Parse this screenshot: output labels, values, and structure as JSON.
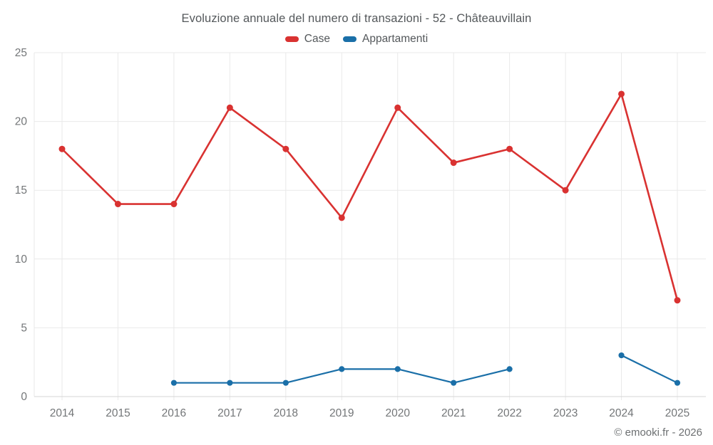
{
  "title": "Evoluzione annuale del numero di transazioni - 52 - Châteauvillain",
  "footer": "© emooki.fr - 2026",
  "chart_data": {
    "type": "line",
    "title": "Evoluzione annuale del numero di transazioni - 52 - Châteauvillain",
    "categories": [
      2014,
      2015,
      2016,
      2017,
      2018,
      2019,
      2020,
      2021,
      2022,
      2023,
      2024,
      2025
    ],
    "series": [
      {
        "name": "Case",
        "color": "#d93231",
        "values": [
          18,
          14,
          14,
          21,
          18,
          13,
          21,
          17,
          18,
          15,
          22,
          7
        ]
      },
      {
        "name": "Appartamenti",
        "color": "#1a6fa8",
        "values": [
          null,
          null,
          1,
          1,
          1,
          2,
          2,
          1,
          2,
          null,
          3,
          1
        ]
      }
    ],
    "xlabel": "",
    "ylabel": "",
    "ylim": [
      0,
      25
    ],
    "yticks": [
      0,
      5,
      10,
      15,
      20,
      25
    ],
    "grid": true,
    "legend_position": "top",
    "gap_years": [
      2023
    ],
    "colors": {
      "grid_line": "#e9e9e9",
      "axis_line": "#d6d6d6",
      "tick_label": "#737678",
      "title_text": "#54585b"
    }
  }
}
